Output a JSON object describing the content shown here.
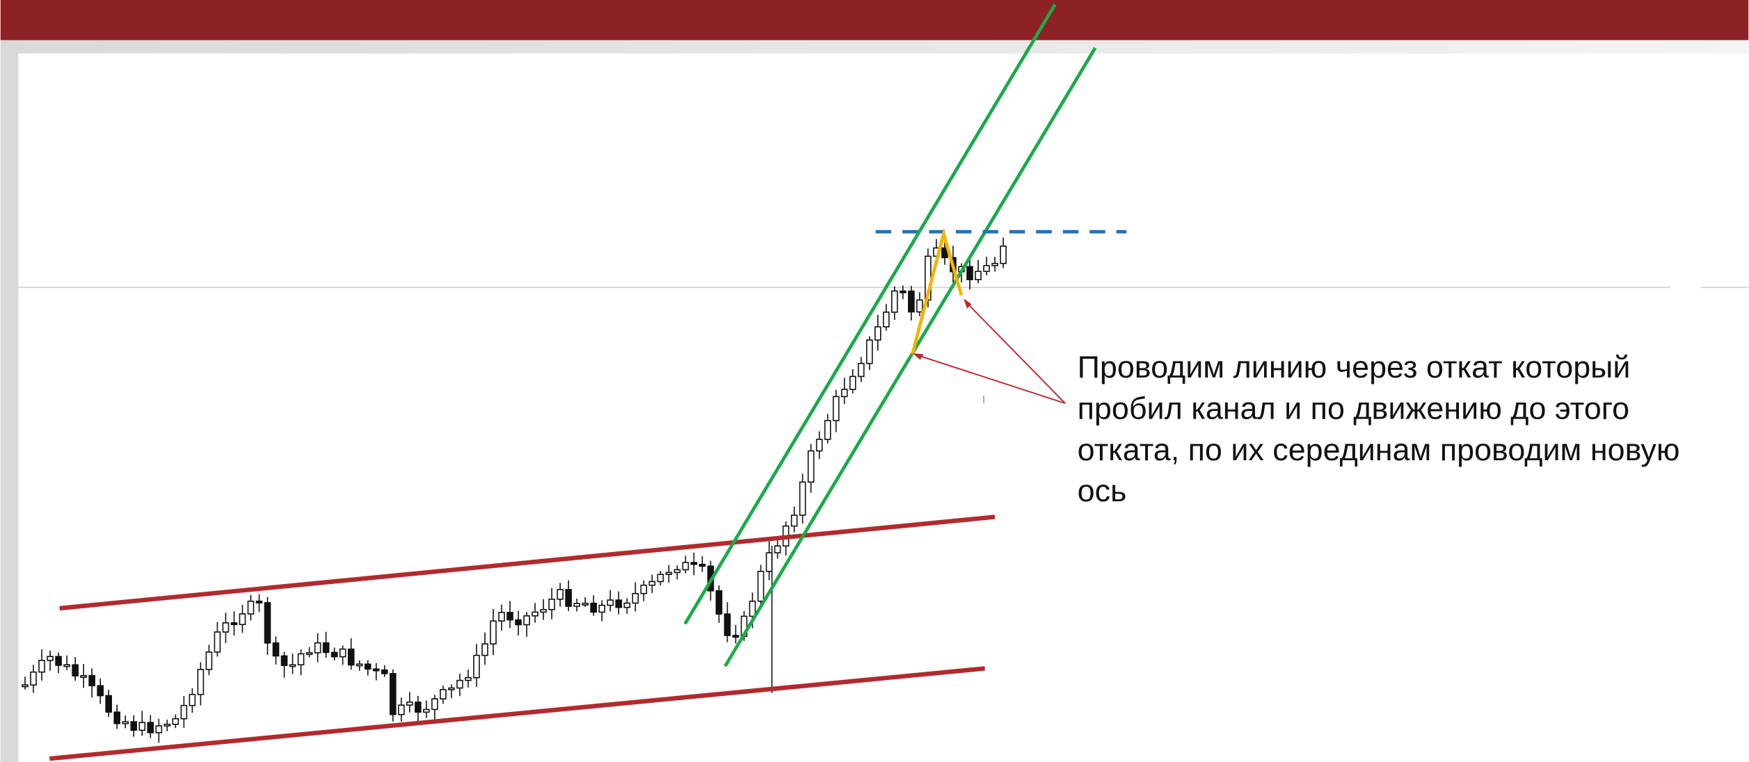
{
  "annotation": {
    "lines": [
      "Проводим линию через откат который",
      "пробил  канал и по движению до этого",
      "отката, по их серединам проводим новую",
      "ось"
    ]
  }
}
